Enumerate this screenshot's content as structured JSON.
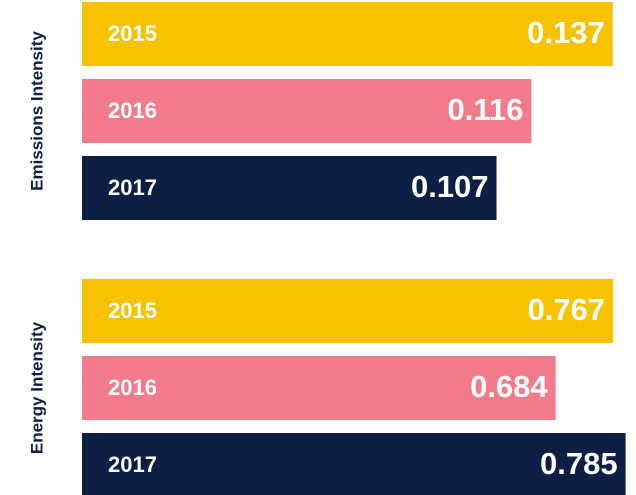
{
  "chart_data": [
    {
      "type": "bar",
      "orientation": "horizontal",
      "ylabel": "Emissions Intensity",
      "categories": [
        "2015",
        "2016",
        "2017"
      ],
      "values": [
        0.137,
        0.116,
        0.107
      ],
      "colors": [
        "#f7c200",
        "#f27a8a",
        "#0d1f45"
      ],
      "xlim": [
        0,
        0.143
      ]
    },
    {
      "type": "bar",
      "orientation": "horizontal",
      "ylabel": "Energy Intensity",
      "categories": [
        "2015",
        "2016",
        "2017"
      ],
      "values": [
        0.767,
        0.684,
        0.785
      ],
      "colors": [
        "#f7c200",
        "#f27a8a",
        "#0d1f45"
      ],
      "xlim": [
        0,
        0.8
      ]
    }
  ]
}
